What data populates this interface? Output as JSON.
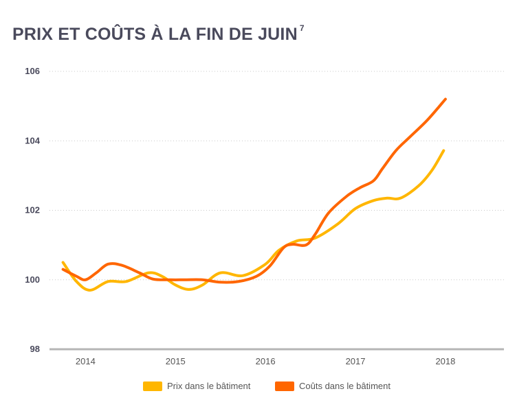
{
  "title": "PRIX ET COÛTS À LA FIN DE JUIN",
  "title_note": "7",
  "chart_data": {
    "type": "line",
    "title": "PRIX ET COÛTS À LA FIN DE JUIN",
    "xlabel": "",
    "ylabel": "",
    "ylim": [
      98,
      106
    ],
    "xlim": [
      2013.6,
      2018.65
    ],
    "yticks": [
      98,
      100,
      102,
      104,
      106
    ],
    "xticks": [
      2014,
      2015,
      2016,
      2017,
      2018
    ],
    "grid": "horizontal dotted",
    "legend_position": "bottom-center",
    "series": [
      {
        "name": "Prix dans le bâtiment",
        "color": "#FFB600",
        "points": [
          [
            2013.75,
            100.5
          ],
          [
            2013.9,
            99.95
          ],
          [
            2014.05,
            99.7
          ],
          [
            2014.25,
            99.95
          ],
          [
            2014.45,
            99.95
          ],
          [
            2014.7,
            100.2
          ],
          [
            2014.85,
            100.1
          ],
          [
            2015.0,
            99.85
          ],
          [
            2015.15,
            99.72
          ],
          [
            2015.3,
            99.85
          ],
          [
            2015.5,
            100.2
          ],
          [
            2015.75,
            100.12
          ],
          [
            2016.0,
            100.45
          ],
          [
            2016.15,
            100.85
          ],
          [
            2016.35,
            101.12
          ],
          [
            2016.55,
            101.2
          ],
          [
            2016.8,
            101.6
          ],
          [
            2017.0,
            102.05
          ],
          [
            2017.2,
            102.28
          ],
          [
            2017.35,
            102.35
          ],
          [
            2017.5,
            102.35
          ],
          [
            2017.7,
            102.7
          ],
          [
            2017.85,
            103.15
          ],
          [
            2017.98,
            103.72
          ]
        ]
      },
      {
        "name": "Coûts dans le bâtiment",
        "color": "#FF6600",
        "points": [
          [
            2013.75,
            100.3
          ],
          [
            2013.9,
            100.1
          ],
          [
            2014.0,
            100.0
          ],
          [
            2014.12,
            100.2
          ],
          [
            2014.25,
            100.45
          ],
          [
            2014.4,
            100.42
          ],
          [
            2014.6,
            100.2
          ],
          [
            2014.75,
            100.02
          ],
          [
            2014.95,
            100.0
          ],
          [
            2015.1,
            100.0
          ],
          [
            2015.3,
            100.0
          ],
          [
            2015.5,
            99.93
          ],
          [
            2015.7,
            99.95
          ],
          [
            2015.9,
            100.1
          ],
          [
            2016.05,
            100.4
          ],
          [
            2016.2,
            100.92
          ],
          [
            2016.3,
            101.02
          ],
          [
            2016.45,
            101.0
          ],
          [
            2016.55,
            101.3
          ],
          [
            2016.7,
            101.92
          ],
          [
            2016.9,
            102.4
          ],
          [
            2017.05,
            102.65
          ],
          [
            2017.2,
            102.85
          ],
          [
            2017.3,
            103.2
          ],
          [
            2017.45,
            103.72
          ],
          [
            2017.6,
            104.1
          ],
          [
            2017.8,
            104.6
          ],
          [
            2018.0,
            105.2
          ]
        ]
      }
    ]
  }
}
